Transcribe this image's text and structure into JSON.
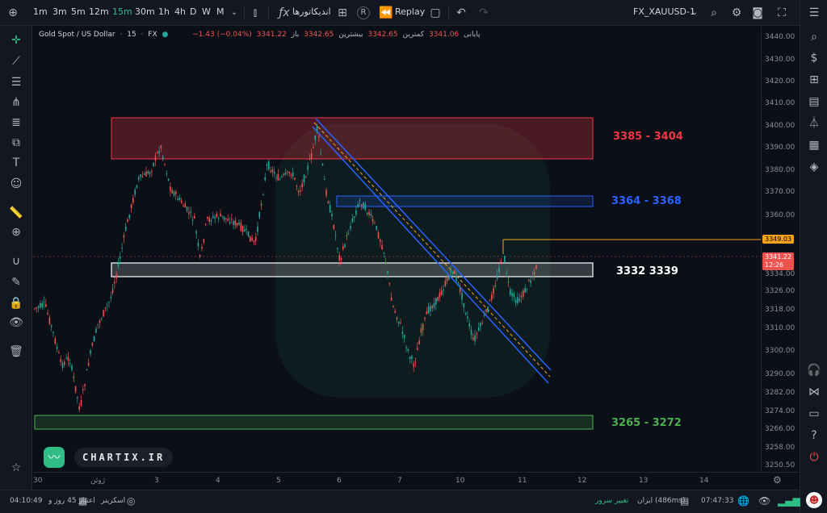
{
  "toolbar": {
    "timeframes": [
      "1m",
      "3m",
      "5m",
      "12m",
      "15m",
      "30m",
      "1h",
      "4h",
      "D",
      "W",
      "M"
    ],
    "active_timeframe": "15m",
    "indicators_label": "اندیکاتورها",
    "replay_label": "Replay",
    "symbol_label": "FX_XAUUSD-1"
  },
  "legend": {
    "symbol": "Gold Spot / US Dollar",
    "interval": "15",
    "exchange": "FX",
    "open_label": "باز",
    "open_value": "3342.65",
    "high_label": "بیشترین",
    "high_value": "3342.65",
    "low_label": "کمترین",
    "low_value": "3341.06",
    "close_label": "پایانی",
    "close_value": "3341.22",
    "change": "−1.43 (−0.04%)"
  },
  "zones": [
    {
      "label": "3385 - 3404",
      "color": "#f23645"
    },
    {
      "label": "3364 - 3368",
      "color": "#2962ff"
    },
    {
      "label": "3332 3339",
      "color": "#ffffff"
    },
    {
      "label": "3265 - 3272",
      "color": "#4caf50"
    }
  ],
  "price_axis": {
    "labels": [
      "3440.00",
      "3430.00",
      "3420.00",
      "3410.00",
      "3400.00",
      "3390.00",
      "3380.00",
      "3370.00",
      "3360.00",
      "3349.03",
      "3341.22",
      "3334.00",
      "3326.00",
      "3318.00",
      "3310.00",
      "3300.00",
      "3290.00",
      "3282.00",
      "3274.00",
      "3266.00",
      "3258.00",
      "3250.50"
    ],
    "horizontal_line_price": "3349.03",
    "current_price": "3341.22",
    "countdown": "12:26"
  },
  "time_axis": {
    "labels": [
      "30",
      "ژوئن",
      "3",
      "4",
      "5",
      "6",
      "7",
      "10",
      "11",
      "12",
      "13",
      "14"
    ]
  },
  "watermark": {
    "brand": "CHARTIX.IR"
  },
  "statusbar": {
    "time_left": "04:10:49",
    "credit_text": "اعتبار 45 روز و",
    "screener_label": "اسکرینر",
    "change_server_label": "تغییر سرور",
    "server_text": "ایران (486ms)",
    "clock": "07:47:33"
  },
  "colors": {
    "up": "#26a69a",
    "down": "#ef5350",
    "accent": "#2ebd85",
    "orange_line": "#f7a21b"
  }
}
